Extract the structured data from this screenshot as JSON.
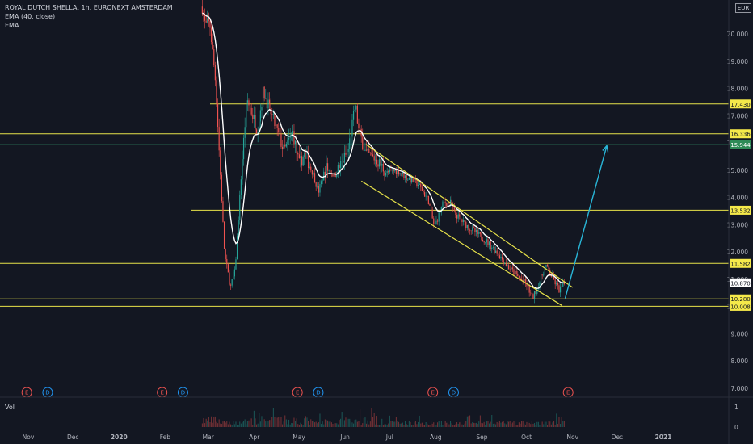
{
  "legend": {
    "symbol": "ROYAL DUTCH SHELLA, 1h, EURONEXT AMSTERDAM",
    "ema40": "EMA (40, close)",
    "ema": "EMA"
  },
  "currency": "EUR",
  "volume_label": "Vol",
  "colors": {
    "background": "#131722",
    "up": "#26a69a",
    "down": "#ef5350",
    "ema": "#ffffff",
    "level_line": "#e8e34a",
    "level_badge": "#f5e94a",
    "target_badge": "#2e8b57",
    "arrow": "#29b6d8",
    "axis_text": "#b2b5be",
    "earnings_badge": "#ef5350",
    "dividend_badge": "#2196f3"
  },
  "chart_data": {
    "type": "candlestick",
    "title": "ROYAL DUTCH SHELLA, 1h, EURONEXT AMSTERDAM",
    "ylim": [
      6.7,
      21.0
    ],
    "y_ticks": [
      7.0,
      8.0,
      9.0,
      10.0,
      11.0,
      12.0,
      13.0,
      14.0,
      15.0,
      16.0,
      17.0,
      18.0,
      19.0,
      20.0
    ],
    "y_tick_labels": [
      "7.000",
      "8.000",
      "9.000",
      "10.000",
      "11.000",
      "12.000",
      "13.000",
      "14.000",
      "15.000",
      "16.000",
      "17.000",
      "18.000",
      "19.000",
      "20.000"
    ],
    "x_ticks": [
      "Nov",
      "Dec",
      "2020",
      "Feb",
      "Mar",
      "Apr",
      "May",
      "Jun",
      "Jul",
      "Aug",
      "Sep",
      "Oct",
      "Nov",
      "Dec",
      "2021"
    ],
    "price_path": [
      [
        "Feb 26",
        21.0
      ],
      [
        "Feb 28",
        20.3
      ],
      [
        "Mar 2",
        20.4
      ],
      [
        "Mar 6",
        18.2
      ],
      [
        "Mar 9",
        15.0
      ],
      [
        "Mar 12",
        11.9
      ],
      [
        "Mar 16",
        10.7
      ],
      [
        "Mar 19",
        11.3
      ],
      [
        "Mar 24",
        15.5
      ],
      [
        "Mar 27",
        17.6
      ],
      [
        "Mar 31",
        17.0
      ],
      [
        "Apr 3",
        16.5
      ],
      [
        "Apr 7",
        17.9
      ],
      [
        "Apr 14",
        16.8
      ],
      [
        "Apr 21",
        15.7
      ],
      [
        "Apr 27",
        16.4
      ],
      [
        "May 1",
        15.2
      ],
      [
        "May 5",
        15.6
      ],
      [
        "May 11",
        14.8
      ],
      [
        "May 14",
        14.2
      ],
      [
        "May 19",
        15.1
      ],
      [
        "May 25",
        14.8
      ],
      [
        "May 29",
        15.2
      ],
      [
        "Jun 3",
        15.7
      ],
      [
        "Jun 8",
        17.4
      ],
      [
        "Jun 10",
        16.5
      ],
      [
        "Jun 15",
        15.6
      ],
      [
        "Jun 22",
        15.4
      ],
      [
        "Jun 29",
        14.9
      ],
      [
        "Jul 6",
        15.0
      ],
      [
        "Jul 13",
        14.7
      ],
      [
        "Jul 20",
        14.5
      ],
      [
        "Jul 27",
        13.9
      ],
      [
        "Jul 31",
        12.9
      ],
      [
        "Aug 6",
        13.8
      ],
      [
        "Aug 11",
        13.8
      ],
      [
        "Aug 14",
        13.4
      ],
      [
        "Aug 21",
        13.0
      ],
      [
        "Aug 28",
        12.7
      ],
      [
        "Sep 4",
        12.4
      ],
      [
        "Sep 11",
        12.0
      ],
      [
        "Sep 18",
        11.5
      ],
      [
        "Sep 25",
        11.1
      ],
      [
        "Oct 1",
        10.8
      ],
      [
        "Oct 5",
        10.3
      ],
      [
        "Oct 9",
        10.8
      ],
      [
        "Oct 14",
        11.5
      ],
      [
        "Oct 19",
        11.0
      ],
      [
        "Oct 23",
        10.6
      ],
      [
        "Oct 27",
        10.87
      ]
    ],
    "series": [
      {
        "name": "EMA (40, close)",
        "color": "#ffffff"
      }
    ],
    "levels": [
      {
        "value": 17.43,
        "label": "17.430"
      },
      {
        "value": 16.336,
        "label": "16.336"
      },
      {
        "value": 13.532,
        "label": "13.532"
      },
      {
        "value": 11.582,
        "label": "11.582"
      },
      {
        "value": 10.28,
        "label": "10.280"
      },
      {
        "value": 10.008,
        "label": "10.008"
      }
    ],
    "target": {
      "value": 15.944,
      "label": "15.944"
    },
    "last_price": {
      "value": 10.87,
      "label": "10.870"
    },
    "channel": {
      "upper": [
        [
          "Jun 15",
          15.95
        ],
        [
          "Nov 1",
          10.7
        ]
      ],
      "lower": [
        [
          "Jun 12",
          14.6
        ],
        [
          "Oct 25",
          10.03
        ]
      ]
    },
    "arrow": {
      "from": [
        "Oct 27",
        10.3
      ],
      "to": [
        "Nov 24",
        15.9
      ]
    },
    "events": [
      {
        "type": "E",
        "date": "Oct 31 2019"
      },
      {
        "type": "D",
        "date": "Nov 14 2019"
      },
      {
        "type": "E",
        "date": "Jan 30 2020"
      },
      {
        "type": "D",
        "date": "Feb 13 2020"
      },
      {
        "type": "E",
        "date": "Apr 30 2020"
      },
      {
        "type": "D",
        "date": "May 14 2020"
      },
      {
        "type": "E",
        "date": "Jul 30 2020"
      },
      {
        "type": "D",
        "date": "Aug 13 2020"
      },
      {
        "type": "E",
        "date": "Oct 29 2020"
      }
    ],
    "volume_ylim": [
      0,
      1
    ],
    "volume_tick_labels": [
      "1",
      "0"
    ],
    "grid": false
  }
}
